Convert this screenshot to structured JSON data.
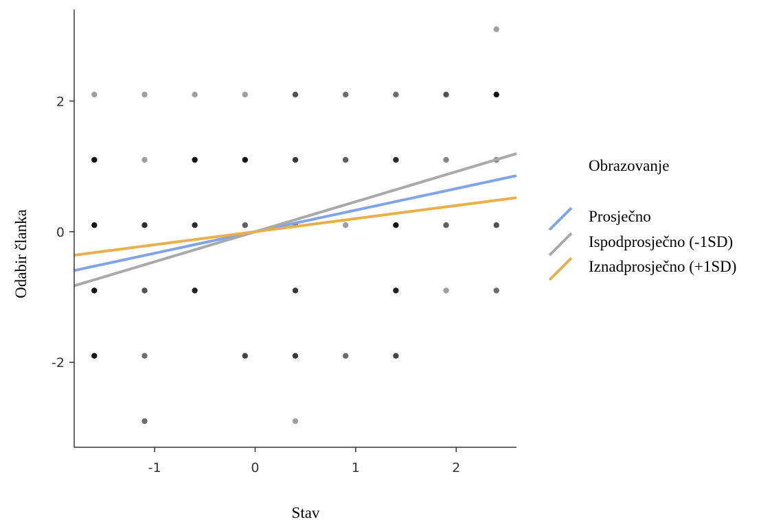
{
  "chart_data": {
    "type": "scatter",
    "xlabel": "Stav",
    "ylabel": "Odabir članka",
    "xlim": [
      -1.8,
      2.6
    ],
    "ylim": [
      -3.3,
      3.4
    ],
    "x_ticks": [
      -1,
      0,
      1,
      2
    ],
    "x_tick_labels": [
      "-1",
      "0",
      "1",
      "2"
    ],
    "y_ticks": [
      -2,
      0,
      2
    ],
    "y_tick_labels": [
      "-2",
      "0",
      "2"
    ],
    "grid": false,
    "legend": {
      "title": "Obrazovanje",
      "placement": "right"
    },
    "points": [
      {
        "x": -1.6,
        "y": 2.1,
        "shade": 0.3
      },
      {
        "x": -1.1,
        "y": 2.1,
        "shade": 0.3
      },
      {
        "x": -0.6,
        "y": 2.1,
        "shade": 0.3
      },
      {
        "x": -0.1,
        "y": 2.1,
        "shade": 0.3
      },
      {
        "x": 0.4,
        "y": 2.1,
        "shade": 0.6
      },
      {
        "x": 0.9,
        "y": 2.1,
        "shade": 0.5
      },
      {
        "x": 1.4,
        "y": 2.1,
        "shade": 0.5
      },
      {
        "x": 1.9,
        "y": 2.1,
        "shade": 0.6
      },
      {
        "x": 2.4,
        "y": 2.1,
        "shade": 0.85
      },
      {
        "x": 2.4,
        "y": 3.1,
        "shade": 0.3
      },
      {
        "x": -1.6,
        "y": 1.1,
        "shade": 0.85
      },
      {
        "x": -1.1,
        "y": 1.1,
        "shade": 0.3
      },
      {
        "x": -0.6,
        "y": 1.1,
        "shade": 0.85
      },
      {
        "x": -0.1,
        "y": 1.1,
        "shade": 0.85
      },
      {
        "x": 0.4,
        "y": 1.1,
        "shade": 0.7
      },
      {
        "x": 0.9,
        "y": 1.1,
        "shade": 0.55
      },
      {
        "x": 1.4,
        "y": 1.1,
        "shade": 0.75
      },
      {
        "x": 1.9,
        "y": 1.1,
        "shade": 0.4
      },
      {
        "x": 2.4,
        "y": 1.1,
        "shade": 0.4
      },
      {
        "x": -1.6,
        "y": 0.1,
        "shade": 0.85
      },
      {
        "x": -1.1,
        "y": 0.1,
        "shade": 0.75
      },
      {
        "x": -0.6,
        "y": 0.1,
        "shade": 0.75
      },
      {
        "x": -0.1,
        "y": 0.1,
        "shade": 0.55
      },
      {
        "x": 0.4,
        "y": 0.1,
        "shade": 0.5
      },
      {
        "x": 0.9,
        "y": 0.1,
        "shade": 0.3
      },
      {
        "x": 1.4,
        "y": 0.1,
        "shade": 0.85
      },
      {
        "x": 1.9,
        "y": 0.1,
        "shade": 0.55
      },
      {
        "x": 2.4,
        "y": 0.1,
        "shade": 0.6
      },
      {
        "x": -1.6,
        "y": -0.9,
        "shade": 0.85
      },
      {
        "x": -1.1,
        "y": -0.9,
        "shade": 0.6
      },
      {
        "x": -0.6,
        "y": -0.9,
        "shade": 0.8
      },
      {
        "x": 0.4,
        "y": -0.9,
        "shade": 0.7
      },
      {
        "x": 1.4,
        "y": -0.9,
        "shade": 0.8
      },
      {
        "x": 1.9,
        "y": -0.9,
        "shade": 0.3
      },
      {
        "x": 2.4,
        "y": -0.9,
        "shade": 0.5
      },
      {
        "x": -1.6,
        "y": -1.9,
        "shade": 0.85
      },
      {
        "x": -1.1,
        "y": -1.9,
        "shade": 0.5
      },
      {
        "x": -0.1,
        "y": -1.9,
        "shade": 0.65
      },
      {
        "x": 0.4,
        "y": -1.9,
        "shade": 0.7
      },
      {
        "x": 0.9,
        "y": -1.9,
        "shade": 0.5
      },
      {
        "x": 1.4,
        "y": -1.9,
        "shade": 0.65
      },
      {
        "x": -1.1,
        "y": -2.9,
        "shade": 0.5
      },
      {
        "x": 0.4,
        "y": -2.9,
        "shade": 0.3
      }
    ],
    "series": [
      {
        "name": "Prosječno",
        "color": "#7fa5e8",
        "slope": 0.33,
        "intercept": 0.0
      },
      {
        "name": "Ispodprosječno (-1SD)",
        "color": "#a9a9a9",
        "slope": 0.46,
        "intercept": 0.0
      },
      {
        "name": "Iznadprosječno (+1SD)",
        "color": "#e8b04c",
        "slope": 0.2,
        "intercept": 0.0
      }
    ]
  }
}
